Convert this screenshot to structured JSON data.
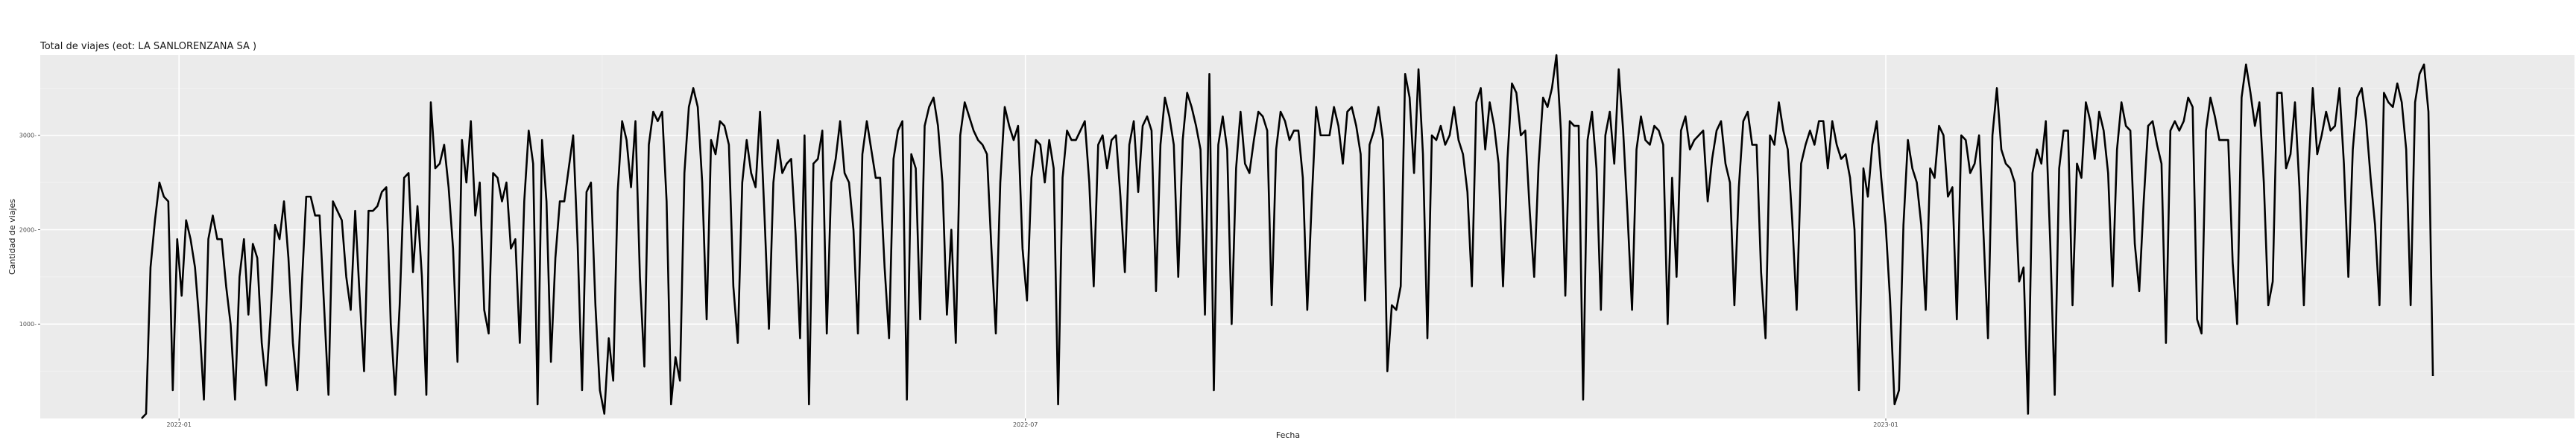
{
  "chart_data": {
    "type": "line",
    "title": "Total de viajes (eot: LA SANLORENZANA SA )",
    "xlabel": "Fecha",
    "ylabel": "Cantidad de viajes",
    "x_ticks": [
      "2022-01",
      "2022-07",
      "2023-01"
    ],
    "y_ticks": [
      1000,
      2000,
      3000
    ],
    "y_tick_labels": [
      "1000-",
      "2000-",
      "3000-"
    ],
    "ylim": [
      0,
      3850
    ],
    "x_start": "2021-12-24",
    "x_end": "2023-04-28",
    "grid": true,
    "legend": "none",
    "line_color": "#000000",
    "panel_color": "#ebebeb",
    "series": [
      {
        "values": [
          0,
          50,
          1600,
          2100,
          2500,
          2350,
          2300,
          300,
          1900,
          1300,
          2100,
          1900,
          1600,
          1000,
          200,
          1900,
          2150,
          1900,
          1900,
          1400,
          1000,
          200,
          1500,
          1900,
          1100,
          1850,
          1700,
          800,
          350,
          1100,
          2050,
          1900,
          2300,
          1700,
          800,
          300,
          1400,
          2350,
          2350,
          2150,
          2150,
          1200,
          250,
          2300,
          2200,
          2100,
          1500,
          1150,
          2200,
          1300,
          500,
          2200,
          2200,
          2250,
          2400,
          2450,
          1000,
          250,
          1200,
          2550,
          2600,
          1550,
          2250,
          1500,
          250,
          3350,
          2650,
          2700,
          2900,
          2450,
          1800,
          600,
          2950,
          2500,
          3150,
          2150,
          2500,
          1150,
          900,
          2600,
          2550,
          2300,
          2500,
          1800,
          1900,
          800,
          2300,
          3050,
          2700,
          150,
          2950,
          2300,
          600,
          1700,
          2300,
          2300,
          2650,
          3000,
          1850,
          300,
          2400,
          2500,
          1200,
          300,
          50,
          850,
          400,
          2400,
          3150,
          2950,
          2450,
          3150,
          1500,
          550,
          2900,
          3250,
          3150,
          3250,
          2300,
          150,
          650,
          400,
          2600,
          3300,
          3500,
          3300,
          2500,
          1050,
          2950,
          2800,
          3150,
          3100,
          2900,
          1400,
          800,
          2500,
          2950,
          2600,
          2450,
          3250,
          2150,
          950,
          2500,
          2950,
          2600,
          2700,
          2750,
          1950,
          850,
          3000,
          150,
          2700,
          2750,
          3050,
          900,
          2500,
          2750,
          3150,
          2600,
          2500,
          2000,
          900,
          2800,
          3150,
          2850,
          2550,
          2550,
          1600,
          850,
          2750,
          3050,
          3150,
          200,
          2800,
          2650,
          1050,
          3100,
          3300,
          3400,
          3100,
          2500,
          1100,
          2000,
          800,
          3000,
          3350,
          3200,
          3050,
          2950,
          2900,
          2800,
          1800,
          900,
          2500,
          3300,
          3100,
          2950,
          3100,
          1800,
          1250,
          2550,
          2950,
          2900,
          2500,
          2950,
          2650,
          150,
          2550,
          3050,
          2950,
          2950,
          3050,
          3150,
          2500,
          1400,
          2900,
          3000,
          2650,
          2950,
          3000,
          2350,
          1550,
          2900,
          3150,
          2400,
          3100,
          3200,
          3050,
          1350,
          2900,
          3400,
          3200,
          2900,
          1500,
          2950,
          3450,
          3300,
          3100,
          2850,
          1100,
          3650,
          300,
          2900,
          3200,
          2850,
          1000,
          2650,
          3250,
          2700,
          2600,
          2950,
          3250,
          3200,
          3050,
          1200,
          2850,
          3250,
          3150,
          2950,
          3050,
          3050,
          2550,
          1150,
          2300,
          3300,
          3000,
          3000,
          3000,
          3300,
          3100,
          2700,
          3250,
          3300,
          3100,
          2800,
          1250,
          2900,
          3050,
          3300,
          2950,
          500,
          1200,
          1150,
          1400,
          3650,
          3400,
          2600,
          3700,
          2800,
          850,
          3000,
          2950,
          3100,
          2900,
          3000,
          3300,
          2950,
          2800,
          2400,
          1400,
          3350,
          3500,
          2850,
          3350,
          3100,
          2700,
          1400,
          2750,
          3550,
          3450,
          3000,
          3050,
          2200,
          1500,
          2700,
          3400,
          3300,
          3500,
          3850,
          3050,
          1300,
          3150,
          3100,
          3100,
          200,
          2950,
          3250,
          2650,
          1150,
          3000,
          3250,
          2700,
          3700,
          3050,
          2150,
          1150,
          2850,
          3200,
          2950,
          2900,
          3100,
          3050,
          2900,
          1000,
          2550,
          1500,
          3050,
          3200,
          2850,
          2950,
          3000,
          3050,
          2300,
          2750,
          3050,
          3150,
          2700,
          2500,
          1200,
          2450,
          3150,
          3250,
          2900,
          2900,
          1550,
          850,
          3000,
          2900,
          3350,
          3050,
          2850,
          2100,
          1150,
          2700,
          2900,
          3050,
          2900,
          3150,
          3150,
          2650,
          3150,
          2900,
          2750,
          2800,
          2550,
          2000,
          300,
          2650,
          2350,
          2900,
          3150,
          2550,
          2050,
          1250,
          150,
          300,
          2050,
          2950,
          2650,
          2500,
          2050,
          1150,
          2650,
          2550,
          3100,
          3000,
          2350,
          2450,
          1050,
          3000,
          2950,
          2600,
          2700,
          3000,
          1950,
          850,
          3000,
          3500,
          2850,
          2700,
          2650,
          2500,
          1450,
          1600,
          50,
          2600,
          2850,
          2700,
          3150,
          1850,
          250,
          2650,
          3050,
          3050,
          1200,
          2700,
          2550,
          3350,
          3150,
          2750,
          3250,
          3050,
          2600,
          1400,
          2850,
          3350,
          3100,
          3050,
          1850,
          1350,
          2300,
          3100,
          3150,
          2900,
          2700,
          800,
          3050,
          3150,
          3050,
          3150,
          3400,
          3300,
          1050,
          900,
          3050,
          3400,
          3200,
          2950,
          2950,
          2950,
          1650,
          1000,
          3400,
          3750,
          3450,
          3100,
          3350,
          2500,
          1200,
          1450,
          3450,
          3450,
          2650,
          2800,
          3350,
          2450,
          1200,
          2600,
          3500,
          2800,
          3000,
          3250,
          3050,
          3100,
          3500,
          2700,
          1500,
          2850,
          3400,
          3500,
          3150,
          2550,
          2050,
          1200,
          3450,
          3350,
          3300,
          3550,
          3350,
          2850,
          1200,
          3350,
          3650,
          3750,
          3250,
          450
        ]
      }
    ]
  }
}
